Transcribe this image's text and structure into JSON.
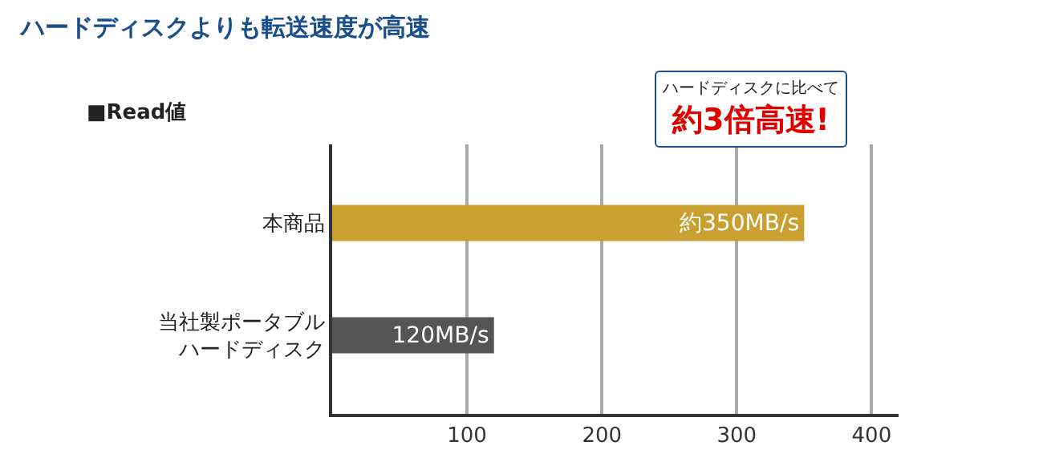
{
  "chart_data": {
    "type": "bar",
    "orientation": "horizontal",
    "title": "ハードディスクよりも転送速度が高速",
    "subtitle": "■Read値",
    "categories": [
      "本商品",
      "当社製ポータブルハードディスク"
    ],
    "values": [
      350,
      120
    ],
    "colors": [
      "#c9a030",
      "#555555"
    ],
    "value_labels": [
      "約350MB/s",
      "120MB/s"
    ],
    "xlim": [
      0,
      420
    ],
    "xticks": [
      100,
      200,
      300,
      400
    ],
    "grid": "x",
    "legend": false,
    "annotations": [
      "ハードディスクに比べて",
      "約3倍高速!"
    ]
  }
}
